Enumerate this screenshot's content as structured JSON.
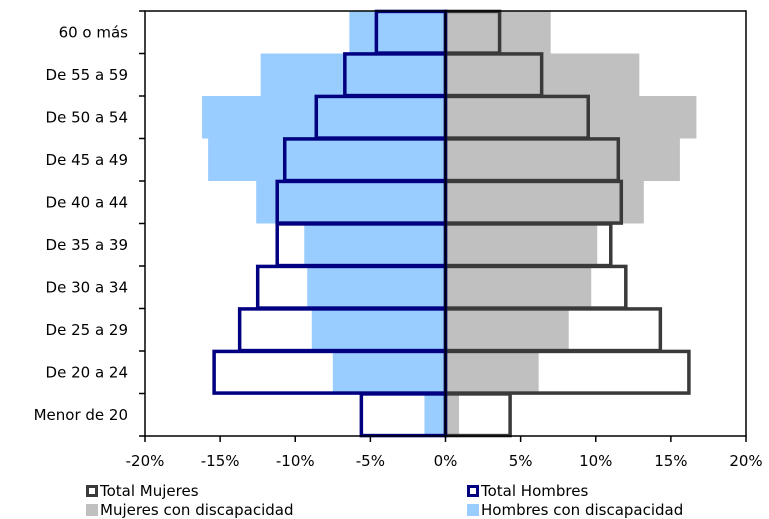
{
  "chart_data": {
    "type": "bar",
    "orientation": "horizontal",
    "categories": [
      "60 o más",
      "De 55 a 59",
      "De 50 a 54",
      "De 45 a 49",
      "De 40 a 44",
      "De 35 a 39",
      "De 30 a 34",
      "De 25 a 29",
      "De 20 a 24",
      "Menor de 20"
    ],
    "series": [
      {
        "name": "Total Mujeres",
        "style": "outline",
        "color": "#3a3a3a",
        "values": [
          3.6,
          6.4,
          9.5,
          11.5,
          11.7,
          11.0,
          12.0,
          14.3,
          16.2,
          4.3
        ]
      },
      {
        "name": "Total Hombres",
        "style": "outline",
        "color": "#000080",
        "values": [
          -4.6,
          -6.7,
          -8.6,
          -10.7,
          -11.2,
          -11.2,
          -12.5,
          -13.7,
          -15.4,
          -5.6
        ]
      },
      {
        "name": "Mujeres con discapacidad",
        "style": "fill",
        "color": "#c0c0c0",
        "values": [
          7.0,
          12.9,
          16.7,
          15.6,
          13.2,
          10.1,
          9.7,
          8.2,
          6.2,
          0.9
        ]
      },
      {
        "name": "Hombres con discapacidad",
        "style": "fill",
        "color": "#99ccff",
        "values": [
          -6.4,
          -12.3,
          -16.2,
          -15.8,
          -12.6,
          -9.4,
          -9.2,
          -8.9,
          -7.5,
          -1.4
        ]
      }
    ],
    "xlim": [
      -0.2,
      0.2
    ],
    "xticks": [
      "-20%",
      "-15%",
      "-10%",
      "-5%",
      "0%",
      "5%",
      "10%",
      "15%",
      "20%"
    ],
    "xlabel": "",
    "ylabel": "",
    "title": "",
    "grid": false,
    "legend_position": "bottom"
  },
  "legend": {
    "total_mujeres": "Total Mujeres",
    "total_hombres": "Total Hombres",
    "mujeres_discapacidad": "Mujeres con discapacidad",
    "hombres_discapacidad": "Hombres con discapacidad"
  },
  "colors": {
    "mujeres_fill": "#c0c0c0",
    "hombres_fill": "#99ccff",
    "mujeres_outline": "#3a3a3a",
    "hombres_outline": "#000080",
    "axis": "#000000"
  }
}
